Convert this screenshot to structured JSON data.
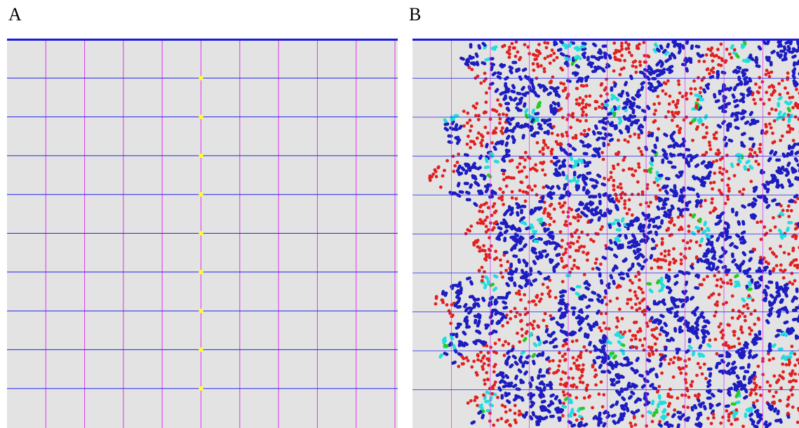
{
  "panels": [
    {
      "id": "A",
      "label": "A",
      "state": "initial",
      "grid": {
        "cols": 10,
        "rows": 10
      },
      "seed_row_indices": [
        1,
        2,
        3,
        4,
        5,
        6,
        7,
        8,
        9
      ],
      "seed_col_index": 5
    },
    {
      "id": "B",
      "label": "B",
      "state": "populated",
      "grid": {
        "cols": 10,
        "rows": 10
      },
      "empty_left_columns": 1
    }
  ],
  "colors": {
    "background": "#e3e3e3",
    "horizontal_line": "#2222ee",
    "vertical_line": "#dd33ee",
    "top_border": "#1a1add",
    "seed": "#ffff22",
    "agent_blue": "#1c1cc0",
    "agent_red": "#e02020",
    "agent_cyan": "#22dddd",
    "agent_green": "#22cc22"
  }
}
